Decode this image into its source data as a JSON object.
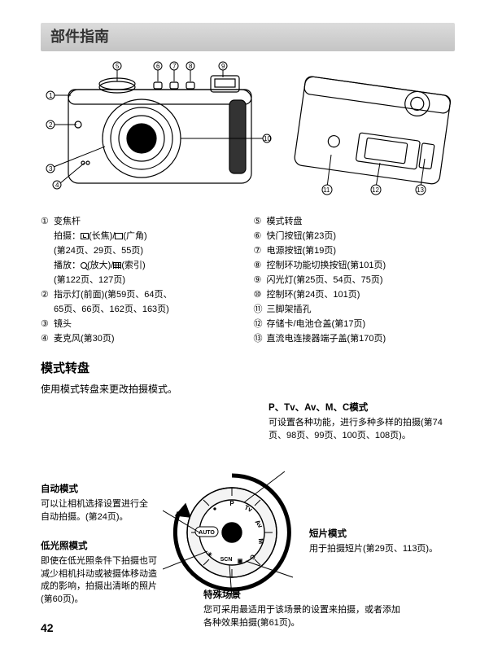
{
  "title": "部件指南",
  "page_number": "42",
  "camera_callouts_front": [
    "1",
    "2",
    "3",
    "4",
    "5",
    "6",
    "7",
    "8",
    "9",
    "10"
  ],
  "camera_callouts_rear": [
    "11",
    "12",
    "13"
  ],
  "parts_left": [
    {
      "num": "①",
      "lines": [
        "变焦杆",
        "拍摄：[icon-tele](长焦)/[icon-wide](广角)",
        "(第24页、29页、55页)",
        "播放：[icon-mag](放大)/[icon-grid](索引)",
        "(第122页、127页)"
      ]
    },
    {
      "num": "②",
      "lines": [
        "指示灯(前面)(第59页、64页、",
        "65页、66页、162页、163页)"
      ]
    },
    {
      "num": "③",
      "lines": [
        "镜头"
      ]
    },
    {
      "num": "④",
      "lines": [
        "麦克风(第30页)"
      ]
    }
  ],
  "parts_right": [
    {
      "num": "⑤",
      "lines": [
        "模式转盘"
      ]
    },
    {
      "num": "⑥",
      "lines": [
        "快门按钮(第23页)"
      ]
    },
    {
      "num": "⑦",
      "lines": [
        "电源按钮(第19页)"
      ]
    },
    {
      "num": "⑧",
      "lines": [
        "控制环功能切换按钮(第101页)"
      ]
    },
    {
      "num": "⑨",
      "lines": [
        "闪光灯(第25页、54页、75页)"
      ]
    },
    {
      "num": "⑩",
      "lines": [
        "控制环(第24页、101页)"
      ]
    },
    {
      "num": "⑪",
      "lines": [
        "三脚架插孔"
      ]
    },
    {
      "num": "⑫",
      "lines": [
        "存储卡/电池仓盖(第17页)"
      ]
    },
    {
      "num": "⑬",
      "lines": [
        "直流电连接器端子盖(第170页)"
      ]
    }
  ],
  "mode_section_title": "模式转盘",
  "mode_section_intro": "使用模式转盘来更改拍摄模式。",
  "annotations": {
    "ptv": {
      "title": "P、Tv、Av、M、C模式",
      "body": "可设置各种功能，进行多种多样的拍摄(第74页、98页、99页、100页、108页)。"
    },
    "auto": {
      "title": "自动模式",
      "body": "可以让相机选择设置进行全自动拍摄。(第24页)。"
    },
    "low": {
      "title": "低光照模式",
      "body": "即使在低光照条件下拍摄也可减少相机抖动或被摄体移动造成的影响，拍摄出清晰的照片(第60页)。"
    },
    "movie": {
      "title": "短片模式",
      "body": "用于拍摄短片(第29页、113页)。"
    },
    "scn": {
      "title": "特殊场景",
      "body": "您可采用最适用于该场景的设置来拍摄，或者添加各种效果拍摄(第61页)。"
    }
  },
  "dial_labels": [
    "P",
    "Tv",
    "Av",
    "M",
    "C",
    "AUTO",
    "SCN"
  ],
  "colors": {
    "title_bg_top": "#dcdcdc",
    "title_bg_bot": "#c4c4c4",
    "text": "#000"
  }
}
